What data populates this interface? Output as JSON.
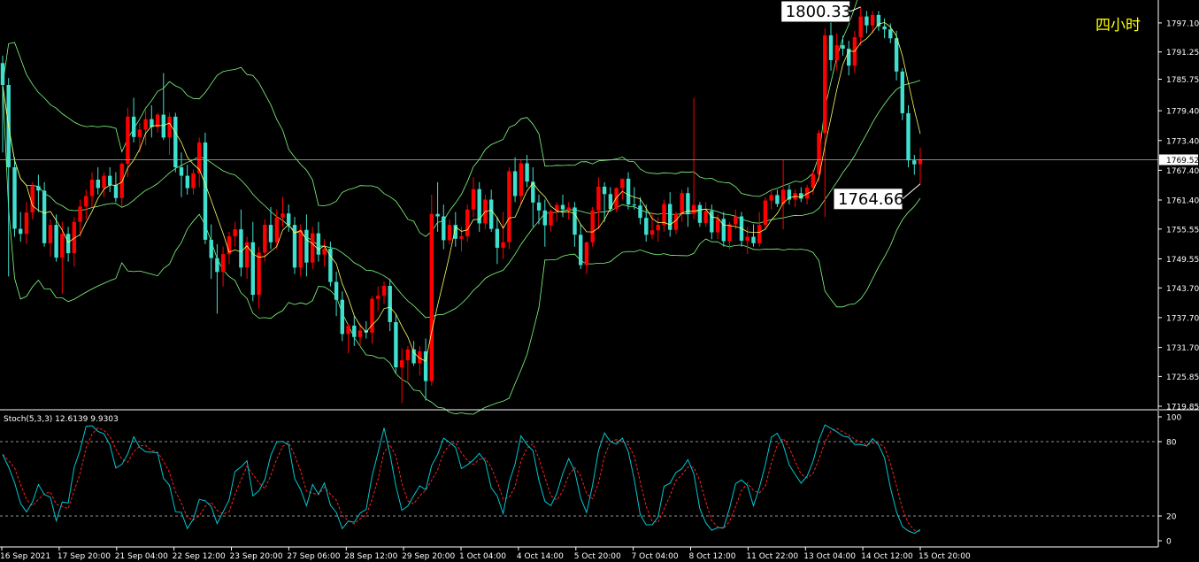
{
  "header": {
    "timeframe_label": "四小时"
  },
  "chart_data": {
    "type": "candlestick",
    "price_axis": {
      "range": [
        1719.85,
        1801.0
      ],
      "ticks": [
        "1797.10",
        "1791.25",
        "1785.75",
        "1779.40",
        "1773.40",
        "1767.40",
        "1761.40",
        "1755.55",
        "1749.55",
        "1743.70",
        "1737.70",
        "1731.70",
        "1725.85",
        "1719.85"
      ]
    },
    "time_axis": {
      "labels": [
        "16 Sep 2021",
        "17 Sep 20:00",
        "21 Sep 04:00",
        "22 Sep 12:00",
        "23 Sep 20:00",
        "27 Sep 06:00",
        "28 Sep 12:00",
        "29 Sep 20:00",
        "1 Oct 04:00",
        "4 Oct 14:00",
        "5 Oct 20:00",
        "7 Oct 04:00",
        "8 Oct 12:00",
        "11 Oct 22:00",
        "13 Oct 04:00",
        "14 Oct 12:00",
        "15 Oct 20:00"
      ]
    },
    "current_price": "1769.52",
    "annotations": [
      {
        "text": "1800.33",
        "value": 1800.33,
        "kind": "high"
      },
      {
        "text": "1764.66",
        "value": 1764.66,
        "kind": "low"
      }
    ],
    "candles": [
      {
        "o": 1789.0,
        "h": 1790.5,
        "l": 1771.0,
        "c": 1784.6
      },
      {
        "o": 1784.6,
        "h": 1786.0,
        "l": 1746.0,
        "c": 1768.0
      },
      {
        "o": 1768.0,
        "h": 1770.0,
        "l": 1754.0,
        "c": 1755.6
      },
      {
        "o": 1755.6,
        "h": 1759.0,
        "l": 1753.0,
        "c": 1754.6
      },
      {
        "o": 1754.6,
        "h": 1761.0,
        "l": 1752.5,
        "c": 1758.9
      },
      {
        "o": 1758.9,
        "h": 1765.0,
        "l": 1757.5,
        "c": 1764.2
      },
      {
        "o": 1764.2,
        "h": 1766.5,
        "l": 1759.0,
        "c": 1763.3
      },
      {
        "o": 1763.3,
        "h": 1765.0,
        "l": 1752.0,
        "c": 1752.7
      },
      {
        "o": 1752.7,
        "h": 1757.5,
        "l": 1750.0,
        "c": 1756.4
      },
      {
        "o": 1756.4,
        "h": 1758.5,
        "l": 1749.0,
        "c": 1749.8
      },
      {
        "o": 1749.8,
        "h": 1757.0,
        "l": 1742.5,
        "c": 1754.6
      },
      {
        "o": 1754.6,
        "h": 1756.0,
        "l": 1749.0,
        "c": 1750.7
      },
      {
        "o": 1750.7,
        "h": 1758.0,
        "l": 1748.0,
        "c": 1757.0
      },
      {
        "o": 1757.0,
        "h": 1761.5,
        "l": 1754.0,
        "c": 1760.1
      },
      {
        "o": 1760.1,
        "h": 1763.5,
        "l": 1757.5,
        "c": 1762.2
      },
      {
        "o": 1762.2,
        "h": 1767.0,
        "l": 1760.0,
        "c": 1765.5
      },
      {
        "o": 1765.5,
        "h": 1768.0,
        "l": 1762.5,
        "c": 1763.8
      },
      {
        "o": 1763.8,
        "h": 1767.0,
        "l": 1762.0,
        "c": 1766.3
      },
      {
        "o": 1766.3,
        "h": 1768.0,
        "l": 1763.0,
        "c": 1764.4
      },
      {
        "o": 1764.4,
        "h": 1767.0,
        "l": 1761.0,
        "c": 1761.8
      },
      {
        "o": 1761.8,
        "h": 1769.0,
        "l": 1760.0,
        "c": 1768.7
      },
      {
        "o": 1768.7,
        "h": 1780.0,
        "l": 1766.0,
        "c": 1778.2
      },
      {
        "o": 1778.2,
        "h": 1782.0,
        "l": 1773.0,
        "c": 1774.1
      },
      {
        "o": 1774.1,
        "h": 1777.0,
        "l": 1771.0,
        "c": 1775.6
      },
      {
        "o": 1775.6,
        "h": 1779.5,
        "l": 1772.5,
        "c": 1777.7
      },
      {
        "o": 1777.7,
        "h": 1780.5,
        "l": 1774.0,
        "c": 1776.1
      },
      {
        "o": 1776.1,
        "h": 1779.0,
        "l": 1775.0,
        "c": 1778.6
      },
      {
        "o": 1778.6,
        "h": 1787.0,
        "l": 1773.5,
        "c": 1774.0
      },
      {
        "o": 1774.0,
        "h": 1779.0,
        "l": 1770.5,
        "c": 1778.2
      },
      {
        "o": 1778.2,
        "h": 1779.0,
        "l": 1767.0,
        "c": 1768.0
      },
      {
        "o": 1768.0,
        "h": 1771.0,
        "l": 1762.0,
        "c": 1766.3
      },
      {
        "o": 1766.3,
        "h": 1768.5,
        "l": 1762.5,
        "c": 1763.8
      },
      {
        "o": 1763.8,
        "h": 1767.5,
        "l": 1762.5,
        "c": 1766.8
      },
      {
        "o": 1766.8,
        "h": 1774.0,
        "l": 1764.0,
        "c": 1773.0
      },
      {
        "o": 1773.0,
        "h": 1775.0,
        "l": 1752.5,
        "c": 1753.4
      },
      {
        "o": 1753.4,
        "h": 1756.5,
        "l": 1745.5,
        "c": 1749.7
      },
      {
        "o": 1749.7,
        "h": 1752.5,
        "l": 1738.5,
        "c": 1746.9
      },
      {
        "o": 1746.9,
        "h": 1752.0,
        "l": 1744.0,
        "c": 1750.5
      },
      {
        "o": 1750.5,
        "h": 1755.0,
        "l": 1748.5,
        "c": 1754.1
      },
      {
        "o": 1754.1,
        "h": 1757.0,
        "l": 1752.0,
        "c": 1755.5
      },
      {
        "o": 1755.5,
        "h": 1759.5,
        "l": 1746.0,
        "c": 1747.8
      },
      {
        "o": 1747.8,
        "h": 1754.0,
        "l": 1745.5,
        "c": 1752.9
      },
      {
        "o": 1752.9,
        "h": 1757.0,
        "l": 1741.0,
        "c": 1742.3
      },
      {
        "o": 1742.3,
        "h": 1752.0,
        "l": 1739.5,
        "c": 1750.8
      },
      {
        "o": 1750.8,
        "h": 1757.5,
        "l": 1749.0,
        "c": 1756.4
      },
      {
        "o": 1756.4,
        "h": 1760.0,
        "l": 1751.5,
        "c": 1752.9
      },
      {
        "o": 1752.9,
        "h": 1759.5,
        "l": 1751.5,
        "c": 1757.9
      },
      {
        "o": 1757.9,
        "h": 1762.0,
        "l": 1756.0,
        "c": 1758.7
      },
      {
        "o": 1758.7,
        "h": 1760.5,
        "l": 1755.0,
        "c": 1756.4
      },
      {
        "o": 1756.4,
        "h": 1758.0,
        "l": 1746.5,
        "c": 1747.8
      },
      {
        "o": 1747.8,
        "h": 1756.5,
        "l": 1746.0,
        "c": 1755.4
      },
      {
        "o": 1755.4,
        "h": 1758.5,
        "l": 1746.0,
        "c": 1748.8
      },
      {
        "o": 1748.8,
        "h": 1756.0,
        "l": 1747.5,
        "c": 1754.7
      },
      {
        "o": 1754.7,
        "h": 1757.0,
        "l": 1749.0,
        "c": 1750.4
      },
      {
        "o": 1750.4,
        "h": 1753.5,
        "l": 1748.0,
        "c": 1751.6
      },
      {
        "o": 1751.6,
        "h": 1753.0,
        "l": 1744.0,
        "c": 1744.9
      },
      {
        "o": 1744.9,
        "h": 1747.0,
        "l": 1738.0,
        "c": 1741.3
      },
      {
        "o": 1741.3,
        "h": 1743.0,
        "l": 1733.0,
        "c": 1734.4
      },
      {
        "o": 1734.4,
        "h": 1736.5,
        "l": 1730.5,
        "c": 1736.1
      },
      {
        "o": 1736.1,
        "h": 1738.0,
        "l": 1732.0,
        "c": 1733.8
      },
      {
        "o": 1733.8,
        "h": 1736.5,
        "l": 1732.0,
        "c": 1735.1
      },
      {
        "o": 1735.1,
        "h": 1737.0,
        "l": 1733.5,
        "c": 1734.7
      },
      {
        "o": 1734.7,
        "h": 1742.0,
        "l": 1732.5,
        "c": 1741.5
      },
      {
        "o": 1741.5,
        "h": 1744.0,
        "l": 1739.0,
        "c": 1742.1
      },
      {
        "o": 1742.1,
        "h": 1745.0,
        "l": 1740.5,
        "c": 1744.1
      },
      {
        "o": 1744.1,
        "h": 1745.5,
        "l": 1735.0,
        "c": 1736.8
      },
      {
        "o": 1736.8,
        "h": 1738.5,
        "l": 1726.5,
        "c": 1727.7
      },
      {
        "o": 1727.7,
        "h": 1731.5,
        "l": 1720.5,
        "c": 1729.1
      },
      {
        "o": 1729.1,
        "h": 1732.0,
        "l": 1725.0,
        "c": 1731.3
      },
      {
        "o": 1731.3,
        "h": 1733.0,
        "l": 1728.0,
        "c": 1728.5
      },
      {
        "o": 1728.5,
        "h": 1732.0,
        "l": 1726.0,
        "c": 1730.9
      },
      {
        "o": 1730.9,
        "h": 1733.5,
        "l": 1721.0,
        "c": 1724.9
      },
      {
        "o": 1724.9,
        "h": 1762.5,
        "l": 1724.0,
        "c": 1758.6
      },
      {
        "o": 1758.6,
        "h": 1765.0,
        "l": 1755.0,
        "c": 1758.1
      },
      {
        "o": 1758.1,
        "h": 1760.5,
        "l": 1751.5,
        "c": 1753.3
      },
      {
        "o": 1753.3,
        "h": 1757.5,
        "l": 1752.5,
        "c": 1756.4
      },
      {
        "o": 1756.4,
        "h": 1759.0,
        "l": 1752.0,
        "c": 1753.6
      },
      {
        "o": 1753.6,
        "h": 1756.0,
        "l": 1751.0,
        "c": 1754.1
      },
      {
        "o": 1754.1,
        "h": 1760.5,
        "l": 1753.0,
        "c": 1759.5
      },
      {
        "o": 1759.5,
        "h": 1766.0,
        "l": 1758.0,
        "c": 1763.6
      },
      {
        "o": 1763.6,
        "h": 1765.0,
        "l": 1755.0,
        "c": 1756.7
      },
      {
        "o": 1756.7,
        "h": 1762.5,
        "l": 1755.5,
        "c": 1761.5
      },
      {
        "o": 1761.5,
        "h": 1763.5,
        "l": 1755.0,
        "c": 1755.6
      },
      {
        "o": 1755.6,
        "h": 1758.0,
        "l": 1748.5,
        "c": 1751.8
      },
      {
        "o": 1751.8,
        "h": 1759.0,
        "l": 1749.5,
        "c": 1752.9
      },
      {
        "o": 1752.9,
        "h": 1768.0,
        "l": 1751.5,
        "c": 1767.2
      },
      {
        "o": 1767.2,
        "h": 1770.0,
        "l": 1761.0,
        "c": 1762.2
      },
      {
        "o": 1762.2,
        "h": 1769.5,
        "l": 1760.5,
        "c": 1768.8
      },
      {
        "o": 1768.8,
        "h": 1770.5,
        "l": 1764.0,
        "c": 1765.1
      },
      {
        "o": 1765.1,
        "h": 1768.0,
        "l": 1756.0,
        "c": 1760.9
      },
      {
        "o": 1760.9,
        "h": 1762.5,
        "l": 1756.5,
        "c": 1759.3
      },
      {
        "o": 1759.3,
        "h": 1761.5,
        "l": 1752.0,
        "c": 1756.3
      },
      {
        "o": 1756.3,
        "h": 1759.5,
        "l": 1755.0,
        "c": 1759.2
      },
      {
        "o": 1759.2,
        "h": 1761.0,
        "l": 1757.0,
        "c": 1760.4
      },
      {
        "o": 1760.4,
        "h": 1762.5,
        "l": 1758.0,
        "c": 1759.5
      },
      {
        "o": 1759.5,
        "h": 1761.0,
        "l": 1757.5,
        "c": 1759.9
      },
      {
        "o": 1759.9,
        "h": 1761.0,
        "l": 1752.0,
        "c": 1754.4
      },
      {
        "o": 1754.4,
        "h": 1756.5,
        "l": 1747.5,
        "c": 1748.3
      },
      {
        "o": 1748.3,
        "h": 1753.0,
        "l": 1746.5,
        "c": 1752.9
      },
      {
        "o": 1752.9,
        "h": 1760.0,
        "l": 1752.0,
        "c": 1759.3
      },
      {
        "o": 1759.3,
        "h": 1766.0,
        "l": 1755.5,
        "c": 1764.1
      },
      {
        "o": 1764.1,
        "h": 1765.0,
        "l": 1757.0,
        "c": 1762.6
      },
      {
        "o": 1762.6,
        "h": 1764.0,
        "l": 1759.0,
        "c": 1759.6
      },
      {
        "o": 1759.6,
        "h": 1764.0,
        "l": 1759.0,
        "c": 1763.8
      },
      {
        "o": 1763.8,
        "h": 1765.5,
        "l": 1761.5,
        "c": 1765.7
      },
      {
        "o": 1765.7,
        "h": 1767.0,
        "l": 1759.5,
        "c": 1760.5
      },
      {
        "o": 1760.5,
        "h": 1764.0,
        "l": 1759.5,
        "c": 1760.3
      },
      {
        "o": 1760.3,
        "h": 1762.0,
        "l": 1756.5,
        "c": 1757.8
      },
      {
        "o": 1757.8,
        "h": 1760.5,
        "l": 1753.0,
        "c": 1754.4
      },
      {
        "o": 1754.4,
        "h": 1759.0,
        "l": 1753.5,
        "c": 1755.3
      },
      {
        "o": 1755.3,
        "h": 1758.0,
        "l": 1753.0,
        "c": 1756.4
      },
      {
        "o": 1756.4,
        "h": 1761.5,
        "l": 1755.0,
        "c": 1760.6
      },
      {
        "o": 1760.6,
        "h": 1763.0,
        "l": 1754.0,
        "c": 1755.4
      },
      {
        "o": 1755.4,
        "h": 1759.0,
        "l": 1754.5,
        "c": 1758.7
      },
      {
        "o": 1758.7,
        "h": 1763.5,
        "l": 1757.0,
        "c": 1762.8
      },
      {
        "o": 1762.8,
        "h": 1764.0,
        "l": 1756.0,
        "c": 1758.6
      },
      {
        "o": 1758.6,
        "h": 1782.0,
        "l": 1757.5,
        "c": 1760.4
      },
      {
        "o": 1760.4,
        "h": 1761.0,
        "l": 1756.0,
        "c": 1756.8
      },
      {
        "o": 1756.8,
        "h": 1761.0,
        "l": 1756.0,
        "c": 1759.2
      },
      {
        "o": 1759.2,
        "h": 1760.5,
        "l": 1753.5,
        "c": 1754.9
      },
      {
        "o": 1754.9,
        "h": 1758.5,
        "l": 1753.5,
        "c": 1757.6
      },
      {
        "o": 1757.6,
        "h": 1759.0,
        "l": 1752.0,
        "c": 1753.1
      },
      {
        "o": 1753.1,
        "h": 1757.0,
        "l": 1751.5,
        "c": 1756.5
      },
      {
        "o": 1756.5,
        "h": 1759.5,
        "l": 1755.5,
        "c": 1758.1
      },
      {
        "o": 1758.1,
        "h": 1759.0,
        "l": 1752.0,
        "c": 1753.2
      },
      {
        "o": 1753.2,
        "h": 1756.0,
        "l": 1750.5,
        "c": 1754.0
      },
      {
        "o": 1754.0,
        "h": 1756.5,
        "l": 1752.0,
        "c": 1752.7
      },
      {
        "o": 1752.7,
        "h": 1759.0,
        "l": 1752.0,
        "c": 1756.4
      },
      {
        "o": 1756.4,
        "h": 1762.0,
        "l": 1755.5,
        "c": 1761.3
      },
      {
        "o": 1761.3,
        "h": 1763.5,
        "l": 1759.5,
        "c": 1762.4
      },
      {
        "o": 1762.4,
        "h": 1763.5,
        "l": 1760.0,
        "c": 1760.6
      },
      {
        "o": 1760.6,
        "h": 1769.5,
        "l": 1755.5,
        "c": 1763.5
      },
      {
        "o": 1763.5,
        "h": 1764.5,
        "l": 1760.5,
        "c": 1761.5
      },
      {
        "o": 1761.5,
        "h": 1763.5,
        "l": 1760.0,
        "c": 1762.8
      },
      {
        "o": 1762.8,
        "h": 1764.0,
        "l": 1761.0,
        "c": 1761.7
      },
      {
        "o": 1761.7,
        "h": 1764.5,
        "l": 1760.5,
        "c": 1763.9
      },
      {
        "o": 1763.9,
        "h": 1767.5,
        "l": 1762.5,
        "c": 1766.6
      },
      {
        "o": 1766.6,
        "h": 1775.5,
        "l": 1765.0,
        "c": 1774.9
      },
      {
        "o": 1774.9,
        "h": 1796.0,
        "l": 1758.0,
        "c": 1794.6
      },
      {
        "o": 1794.6,
        "h": 1797.5,
        "l": 1787.5,
        "c": 1789.6
      },
      {
        "o": 1789.6,
        "h": 1795.0,
        "l": 1787.5,
        "c": 1792.6
      },
      {
        "o": 1792.6,
        "h": 1794.5,
        "l": 1790.5,
        "c": 1791.9
      },
      {
        "o": 1791.9,
        "h": 1793.5,
        "l": 1786.5,
        "c": 1788.5
      },
      {
        "o": 1788.5,
        "h": 1795.5,
        "l": 1787.0,
        "c": 1794.2
      },
      {
        "o": 1794.2,
        "h": 1800.33,
        "l": 1792.5,
        "c": 1798.4
      },
      {
        "o": 1798.4,
        "h": 1799.5,
        "l": 1795.0,
        "c": 1796.6
      },
      {
        "o": 1796.6,
        "h": 1799.5,
        "l": 1795.0,
        "c": 1798.7
      },
      {
        "o": 1798.7,
        "h": 1799.5,
        "l": 1795.5,
        "c": 1796.4
      },
      {
        "o": 1796.4,
        "h": 1798.0,
        "l": 1794.0,
        "c": 1795.8
      },
      {
        "o": 1795.8,
        "h": 1797.0,
        "l": 1793.0,
        "c": 1794.0
      },
      {
        "o": 1794.0,
        "h": 1795.5,
        "l": 1785.5,
        "c": 1787.3
      },
      {
        "o": 1787.3,
        "h": 1788.0,
        "l": 1777.5,
        "c": 1778.9
      },
      {
        "o": 1778.9,
        "h": 1780.5,
        "l": 1768.0,
        "c": 1769.4
      },
      {
        "o": 1769.4,
        "h": 1770.5,
        "l": 1766.5,
        "c": 1768.6
      },
      {
        "o": 1768.6,
        "h": 1772.0,
        "l": 1764.66,
        "c": 1769.5
      }
    ],
    "stochastic": {
      "label": "Stoch(5,3,3) 12.6139 9.9303",
      "range": [
        0,
        100
      ],
      "ticks": [
        "100",
        "80",
        "20",
        "0"
      ],
      "levels": [
        80,
        20
      ],
      "main_color": "#00c8d2",
      "signal_color": "#ff2020"
    },
    "colors": {
      "up": "#ff0000",
      "down": "#40e0d0",
      "bollinger": "#80ff80",
      "ma": "#ffff60",
      "background": "#000000",
      "grid_text": "#ffffff"
    }
  }
}
